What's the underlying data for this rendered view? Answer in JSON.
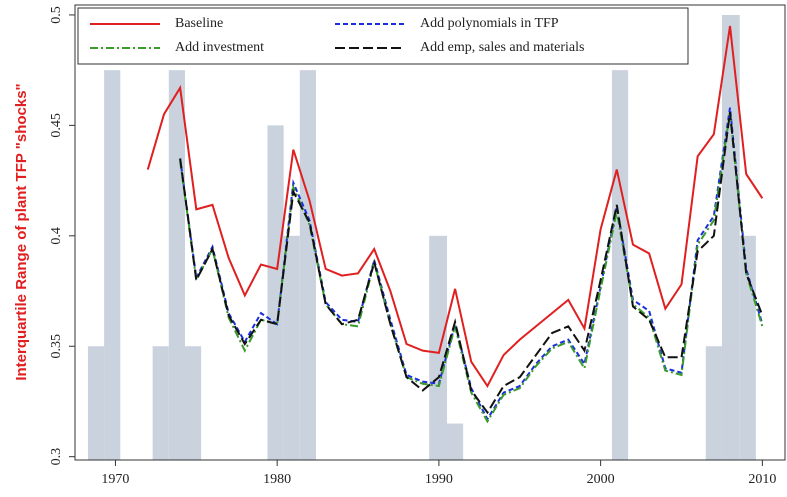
{
  "chart_data": {
    "type": "line",
    "y_label": "Interquartile Range of plant TFP \"shocks\"",
    "x": [
      1972,
      1973,
      1974,
      1975,
      1976,
      1977,
      1978,
      1979,
      1980,
      1981,
      1982,
      1983,
      1984,
      1985,
      1986,
      1987,
      1988,
      1989,
      1990,
      1991,
      1992,
      1993,
      1994,
      1995,
      1996,
      1997,
      1998,
      1999,
      2000,
      2001,
      2002,
      2003,
      2004,
      2005,
      2006,
      2007,
      2008,
      2009,
      2010
    ],
    "series": [
      {
        "name": "Baseline",
        "color": "#e02020",
        "dash": "none",
        "values": [
          0.43,
          0.455,
          0.467,
          0.412,
          0.414,
          0.39,
          0.373,
          0.387,
          0.385,
          0.439,
          0.416,
          0.385,
          0.382,
          0.383,
          0.394,
          0.375,
          0.351,
          0.348,
          0.347,
          0.376,
          0.343,
          0.332,
          0.346,
          0.353,
          0.359,
          0.365,
          0.371,
          0.358,
          0.403,
          0.43,
          0.396,
          0.392,
          0.367,
          0.378,
          0.436,
          0.446,
          0.495,
          0.428,
          0.417
        ]
      },
      {
        "name": "Add polynomials in TFP",
        "color": "#1a2ee0",
        "dash": "5 3",
        "values": [
          null,
          null,
          0.435,
          0.381,
          0.395,
          0.365,
          0.352,
          0.365,
          0.36,
          0.424,
          0.407,
          0.37,
          0.362,
          0.361,
          0.389,
          0.362,
          0.337,
          0.334,
          0.333,
          0.36,
          0.331,
          0.317,
          0.329,
          0.332,
          0.342,
          0.35,
          0.353,
          0.342,
          0.377,
          0.413,
          0.371,
          0.366,
          0.34,
          0.338,
          0.398,
          0.409,
          0.458,
          0.385,
          0.36
        ]
      },
      {
        "name": "Add investment",
        "color": "#3a9a2a",
        "dash": "8 3 2 3",
        "values": [
          null,
          null,
          0.434,
          0.38,
          0.394,
          0.363,
          0.348,
          0.362,
          0.36,
          0.422,
          0.405,
          0.369,
          0.36,
          0.359,
          0.388,
          0.36,
          0.336,
          0.333,
          0.332,
          0.359,
          0.329,
          0.316,
          0.328,
          0.331,
          0.341,
          0.349,
          0.352,
          0.34,
          0.376,
          0.411,
          0.369,
          0.363,
          0.339,
          0.337,
          0.396,
          0.407,
          0.456,
          0.383,
          0.359
        ]
      },
      {
        "name": "Add emp, sales and materials",
        "color": "#111111",
        "dash": "10 4",
        "values": [
          null,
          null,
          0.435,
          0.38,
          0.394,
          0.364,
          0.351,
          0.362,
          0.36,
          0.42,
          0.406,
          0.369,
          0.36,
          0.362,
          0.388,
          0.36,
          0.336,
          0.33,
          0.336,
          0.361,
          0.33,
          0.32,
          0.332,
          0.336,
          0.346,
          0.356,
          0.359,
          0.348,
          0.38,
          0.414,
          0.368,
          0.362,
          0.345,
          0.345,
          0.393,
          0.4,
          0.456,
          0.383,
          0.364
        ]
      }
    ],
    "bands": [
      {
        "start": 1968.3,
        "end": 1969.3,
        "top": 0.35
      },
      {
        "start": 1969.3,
        "end": 1970.3,
        "top": 0.475
      },
      {
        "start": 1972.3,
        "end": 1973.3,
        "top": 0.35
      },
      {
        "start": 1973.3,
        "end": 1974.3,
        "top": 0.475
      },
      {
        "start": 1974.3,
        "end": 1975.3,
        "top": 0.35
      },
      {
        "start": 1979.4,
        "end": 1980.4,
        "top": 0.45
      },
      {
        "start": 1980.4,
        "end": 1981.4,
        "top": 0.4
      },
      {
        "start": 1981.4,
        "end": 1982.4,
        "top": 0.475
      },
      {
        "start": 1989.4,
        "end": 1990.5,
        "top": 0.4
      },
      {
        "start": 1990.5,
        "end": 1991.5,
        "top": 0.315
      },
      {
        "start": 2000.7,
        "end": 2001.7,
        "top": 0.475
      },
      {
        "start": 2006.5,
        "end": 2007.5,
        "top": 0.35
      },
      {
        "start": 2007.5,
        "end": 2008.6,
        "top": 0.5
      },
      {
        "start": 2008.6,
        "end": 2009.6,
        "top": 0.4
      }
    ],
    "band_color": "#c9d2dd",
    "xlim": [
      1967.5,
      2011.4
    ],
    "ylim": [
      0.2985,
      0.5045
    ],
    "xticks": [
      1970,
      1980,
      1990,
      2000,
      2010
    ],
    "yticks": [
      0.3,
      0.35,
      0.4,
      0.45,
      0.5
    ]
  }
}
